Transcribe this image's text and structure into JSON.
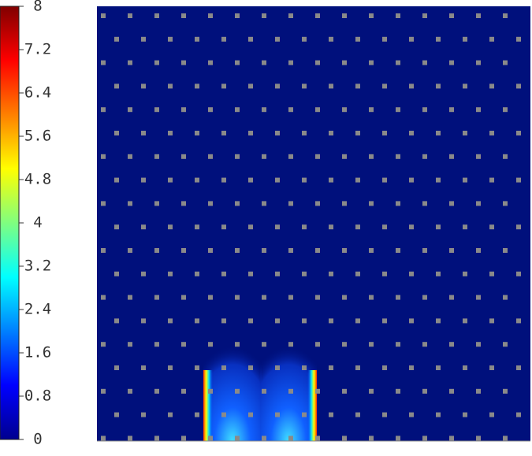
{
  "chart_data": {
    "type": "heatmap",
    "ylim": [
      0,
      8
    ],
    "yticks": [
      0,
      0.8,
      1.6,
      2.4,
      3.2,
      4,
      4.8,
      5.6,
      6.4,
      7.2,
      8
    ]
  }
}
